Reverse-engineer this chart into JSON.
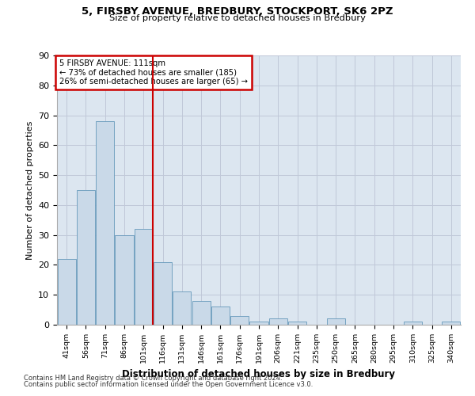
{
  "title1": "5, FIRSBY AVENUE, BREDBURY, STOCKPORT, SK6 2PZ",
  "title2": "Size of property relative to detached houses in Bredbury",
  "xlabel": "Distribution of detached houses by size in Bredbury",
  "ylabel": "Number of detached properties",
  "categories": [
    "41sqm",
    "56sqm",
    "71sqm",
    "86sqm",
    "101sqm",
    "116sqm",
    "131sqm",
    "146sqm",
    "161sqm",
    "176sqm",
    "191sqm",
    "206sqm",
    "221sqm",
    "235sqm",
    "250sqm",
    "265sqm",
    "280sqm",
    "295sqm",
    "310sqm",
    "325sqm",
    "340sqm"
  ],
  "values": [
    22,
    45,
    68,
    30,
    32,
    21,
    11,
    8,
    6,
    3,
    1,
    2,
    1,
    0,
    2,
    0,
    0,
    0,
    1,
    0,
    1
  ],
  "bar_color": "#c9d9e8",
  "bar_edge_color": "#6699bb",
  "grid_color": "#c0c8d8",
  "background_color": "#dce6f0",
  "annotation_text_line1": "5 FIRSBY AVENUE: 111sqm",
  "annotation_text_line2": "← 73% of detached houses are smaller (185)",
  "annotation_text_line3": "26% of semi-detached houses are larger (65) →",
  "annotation_box_color": "#ffffff",
  "annotation_box_edge_color": "#cc0000",
  "vline_color": "#cc0000",
  "vline_x": 4.5,
  "ylim": [
    0,
    90
  ],
  "yticks": [
    0,
    10,
    20,
    30,
    40,
    50,
    60,
    70,
    80,
    90
  ],
  "footnote1": "Contains HM Land Registry data © Crown copyright and database right 2024.",
  "footnote2": "Contains public sector information licensed under the Open Government Licence v3.0."
}
